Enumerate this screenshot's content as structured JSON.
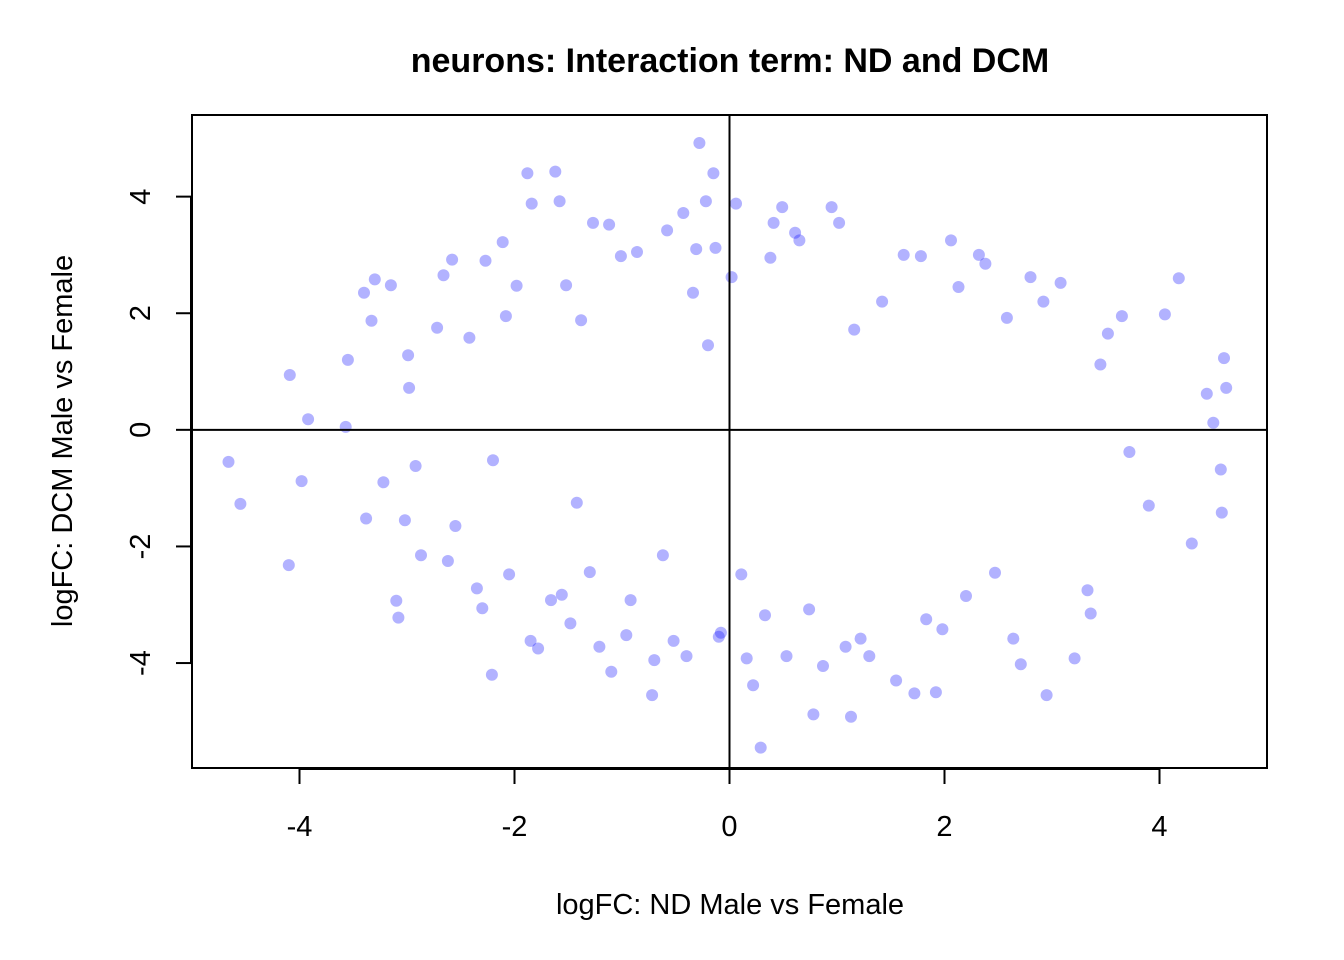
{
  "chart_data": {
    "type": "scatter",
    "title": "neurons: Interaction term: ND and DCM",
    "xlabel": "logFC: ND Male vs Female",
    "ylabel": "logFC: DCM Male vs Female",
    "xlim": [
      -5,
      5
    ],
    "ylim": [
      -5.8,
      5.4
    ],
    "x_ticks": [
      -4,
      -2,
      0,
      2,
      4
    ],
    "y_ticks": [
      -4,
      -2,
      0,
      2,
      4
    ],
    "x_tick_labels": [
      "-4",
      "-2",
      "0",
      "2",
      "4"
    ],
    "y_tick_labels": [
      "-4",
      "-2",
      "0",
      "2",
      "4"
    ],
    "reference_lines": {
      "x": 0,
      "y": 0
    },
    "grid": false,
    "point_color": "#0000FF",
    "point_opacity": 0.3,
    "series": [
      {
        "x": [
          -4.66,
          -4.55,
          -4.09,
          -4.1,
          -3.98,
          -3.92,
          -3.55,
          -3.57,
          -3.4,
          -3.38,
          -3.33,
          -3.3,
          -3.22,
          -3.15,
          -3.1,
          -3.08,
          -3.02,
          -2.99,
          -2.98,
          -2.92,
          -2.87,
          -2.72,
          -2.66,
          -2.62,
          -2.58,
          -2.55,
          -2.42,
          -2.35,
          -2.3,
          -2.27,
          -2.21,
          -2.2,
          -2.11,
          -2.08,
          -2.05,
          -1.98,
          -1.88,
          -1.85,
          -1.84,
          -1.78,
          -1.66,
          -1.62,
          -1.58,
          -1.56,
          -1.52,
          -1.48,
          -1.42,
          -1.38,
          -1.3,
          -1.27,
          -1.21,
          -1.12,
          -1.1,
          -1.01,
          -0.96,
          -0.92,
          -0.86,
          -0.72,
          -0.7,
          -0.62,
          -0.58,
          -0.52,
          -0.43,
          -0.4,
          -0.34,
          -0.31,
          -0.28,
          -0.22,
          -0.2,
          -0.15,
          -0.13,
          -0.1,
          -0.08,
          0.02,
          0.06,
          0.11,
          0.16,
          0.22,
          0.29,
          0.33,
          0.38,
          0.41,
          0.49,
          0.53,
          0.61,
          0.65,
          0.74,
          0.78,
          0.87,
          0.95,
          1.02,
          1.08,
          1.13,
          1.16,
          1.22,
          1.3,
          1.42,
          1.55,
          1.62,
          1.72,
          1.78,
          1.83,
          1.92,
          1.98,
          2.06,
          2.13,
          2.2,
          2.32,
          2.38,
          2.47,
          2.58,
          2.64,
          2.71,
          2.8,
          2.92,
          2.95,
          3.08,
          3.21,
          3.33,
          3.36,
          3.45,
          3.52,
          3.65,
          3.72,
          3.9,
          4.05,
          4.18,
          4.3,
          4.44,
          4.5,
          4.58,
          4.62,
          4.6,
          4.57
        ],
        "y": [
          -0.55,
          -1.27,
          0.94,
          -2.32,
          -0.88,
          0.18,
          1.2,
          0.05,
          2.35,
          -1.52,
          1.87,
          2.58,
          -0.9,
          2.48,
          -2.93,
          -3.22,
          -1.55,
          1.28,
          0.72,
          -0.62,
          -2.15,
          1.75,
          2.65,
          -2.25,
          2.92,
          -1.65,
          1.58,
          -2.72,
          -3.06,
          2.9,
          -4.2,
          -0.52,
          3.22,
          1.95,
          -2.48,
          2.47,
          4.4,
          -3.62,
          3.88,
          -3.75,
          -2.92,
          4.43,
          3.92,
          -2.83,
          2.48,
          -3.32,
          -1.25,
          1.88,
          -2.44,
          3.55,
          -3.72,
          3.52,
          -4.15,
          2.98,
          -3.52,
          -2.92,
          3.05,
          -4.55,
          -3.95,
          -2.15,
          3.42,
          -3.62,
          3.72,
          -3.88,
          2.35,
          3.1,
          4.92,
          3.92,
          1.45,
          4.4,
          3.12,
          -3.55,
          -3.48,
          2.62,
          3.88,
          -2.48,
          -3.92,
          -4.38,
          -5.45,
          -3.18,
          2.95,
          3.55,
          3.82,
          -3.88,
          3.38,
          3.25,
          -3.08,
          -4.88,
          -4.05,
          3.82,
          3.55,
          -3.72,
          -4.92,
          1.72,
          -3.58,
          -3.88,
          2.2,
          -4.3,
          3.0,
          -4.52,
          2.98,
          -3.25,
          -4.5,
          -3.42,
          3.25,
          2.45,
          -2.85,
          3.0,
          2.85,
          -2.45,
          1.92,
          -3.58,
          -4.02,
          2.62,
          2.2,
          -4.55,
          2.52,
          -3.92,
          -2.75,
          -3.15,
          1.12,
          1.65,
          1.95,
          -0.38,
          -1.3,
          1.98,
          2.6,
          -1.95,
          0.62,
          0.12,
          -1.42,
          0.72,
          1.23,
          -0.68
        ]
      }
    ]
  }
}
